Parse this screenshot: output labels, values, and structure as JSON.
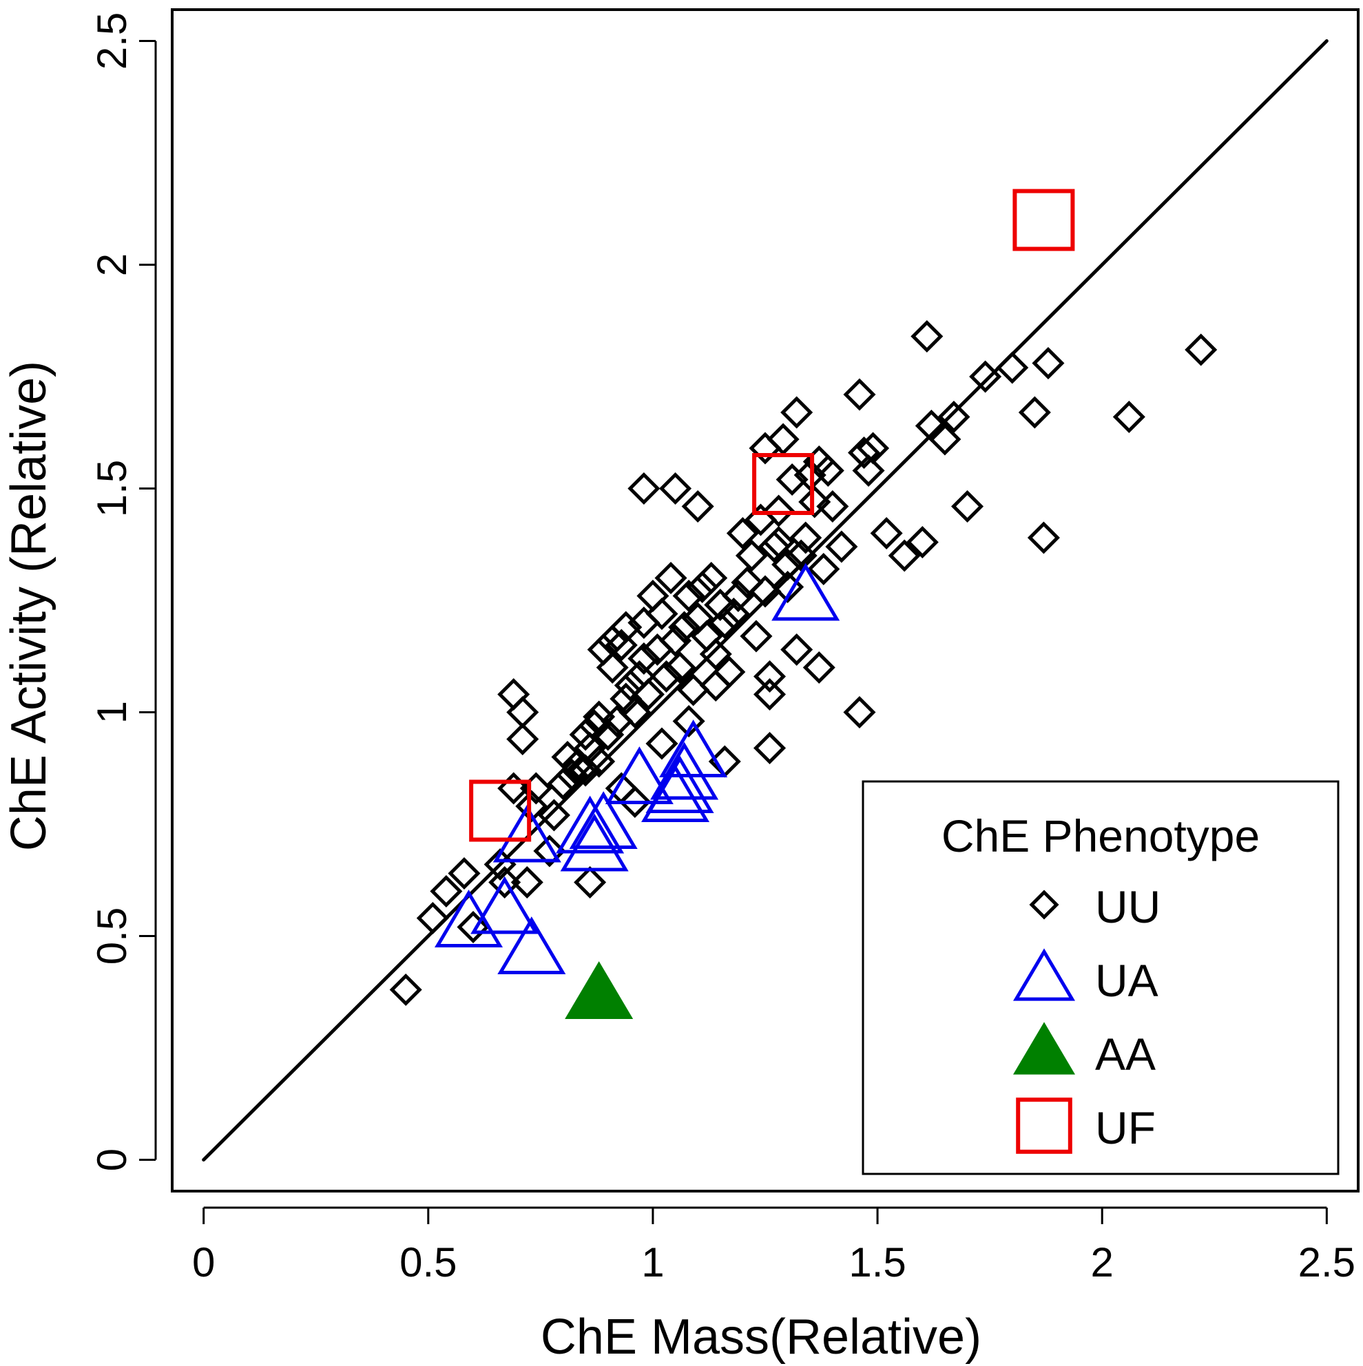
{
  "chart_data": {
    "type": "scatter",
    "xlabel": "ChE Mass(Relative)",
    "ylabel": "ChE Activity (Relative)",
    "xlim": [
      -0.07,
      2.57
    ],
    "ylim": [
      -0.07,
      2.57
    ],
    "xticks": [
      0,
      0.5,
      1,
      1.5,
      2,
      2.5
    ],
    "yticks": [
      0,
      0.5,
      1,
      1.5,
      2,
      2.5
    ],
    "xtick_labels": [
      "0",
      "0.5",
      "1",
      "1.5",
      "2",
      "2.5"
    ],
    "ytick_labels": [
      "0",
      "0.5",
      "1",
      "1.5",
      "2",
      "2.5"
    ],
    "grid": false,
    "reference_line": {
      "x": [
        0,
        2.5
      ],
      "y": [
        0,
        2.5
      ],
      "color": "#000000"
    },
    "legend": {
      "title": "ChE Phenotype",
      "position": "bottom-right"
    },
    "series": [
      {
        "name": "UU",
        "marker": "diamond-open",
        "color": "#000000",
        "x": [
          0.45,
          0.51,
          0.54,
          0.58,
          0.6,
          0.66,
          0.67,
          0.69,
          0.69,
          0.71,
          0.71,
          0.72,
          0.73,
          0.74,
          0.77,
          0.78,
          0.8,
          0.81,
          0.82,
          0.83,
          0.85,
          0.85,
          0.86,
          0.87,
          0.88,
          0.89,
          0.9,
          0.91,
          0.92,
          0.93,
          0.94,
          0.95,
          0.96,
          0.97,
          0.98,
          0.98,
          0.99,
          1.0,
          1.01,
          1.02,
          1.03,
          1.04,
          1.05,
          1.06,
          1.07,
          1.08,
          1.09,
          1.1,
          1.11,
          1.12,
          1.13,
          1.14,
          1.15,
          1.16,
          1.17,
          1.18,
          1.19,
          1.2,
          1.21,
          1.22,
          1.23,
          1.24,
          1.25,
          1.26,
          1.27,
          1.28,
          1.29,
          1.3,
          1.31,
          1.32,
          1.33,
          1.34,
          1.35,
          1.36,
          1.37,
          1.38,
          1.39,
          1.4,
          1.42,
          1.46,
          1.47,
          1.48,
          1.49,
          1.52,
          1.56,
          1.6,
          1.61,
          1.62,
          1.65,
          1.67,
          1.7,
          1.74,
          1.8,
          1.85,
          1.87,
          1.88,
          2.06,
          2.22,
          0.98,
          1.05,
          1.1,
          0.94,
          0.88,
          0.86,
          1.26,
          1.26,
          1.37,
          1.46,
          1.32,
          1.25,
          1.3,
          1.28,
          0.93,
          1.02,
          1.08,
          1.14,
          1.16,
          0.96,
          0.91
        ],
        "y": [
          0.38,
          0.54,
          0.6,
          0.64,
          0.52,
          0.66,
          0.62,
          0.83,
          1.04,
          0.94,
          1.0,
          0.62,
          0.79,
          0.83,
          0.69,
          0.77,
          0.84,
          0.9,
          0.86,
          0.88,
          0.87,
          0.95,
          0.92,
          0.97,
          0.89,
          1.14,
          0.95,
          1.1,
          0.98,
          1.15,
          1.03,
          1.06,
          1.0,
          1.08,
          1.12,
          1.2,
          1.04,
          1.26,
          1.14,
          1.22,
          1.08,
          1.3,
          1.16,
          1.1,
          1.19,
          1.26,
          1.05,
          1.21,
          1.28,
          1.17,
          1.3,
          1.13,
          1.24,
          1.2,
          1.09,
          1.22,
          1.26,
          1.4,
          1.29,
          1.35,
          1.17,
          1.43,
          1.59,
          1.04,
          1.37,
          1.38,
          1.61,
          1.33,
          1.52,
          1.67,
          1.35,
          1.39,
          1.53,
          1.47,
          1.56,
          1.32,
          1.54,
          1.46,
          1.37,
          1.71,
          1.58,
          1.54,
          1.59,
          1.4,
          1.35,
          1.38,
          1.84,
          1.64,
          1.61,
          1.66,
          1.46,
          1.75,
          1.77,
          1.67,
          1.39,
          1.78,
          1.66,
          1.81,
          1.5,
          1.5,
          1.46,
          1.19,
          0.99,
          0.62,
          0.92,
          1.08,
          1.1,
          1.0,
          1.14,
          1.27,
          1.28,
          1.45,
          0.83,
          0.93,
          0.98,
          1.06,
          0.89,
          0.8,
          1.16
        ]
      },
      {
        "name": "UA",
        "marker": "triangle-open",
        "color": "#0000ee",
        "x": [
          0.59,
          0.67,
          0.73,
          0.72,
          0.86,
          0.87,
          0.89,
          0.97,
          1.05,
          1.06,
          1.07,
          1.09,
          1.34
        ],
        "y": [
          0.53,
          0.56,
          0.47,
          0.72,
          0.74,
          0.7,
          0.75,
          0.85,
          0.81,
          0.83,
          0.86,
          0.91,
          1.26
        ]
      },
      {
        "name": "AA",
        "marker": "triangle-filled",
        "color": "#008000",
        "x": [
          0.88
        ],
        "y": [
          0.37
        ]
      },
      {
        "name": "UF",
        "marker": "square-open",
        "color": "#ee0000",
        "x": [
          0.66,
          1.29,
          1.87
        ],
        "y": [
          0.78,
          1.51,
          2.1
        ]
      }
    ]
  }
}
